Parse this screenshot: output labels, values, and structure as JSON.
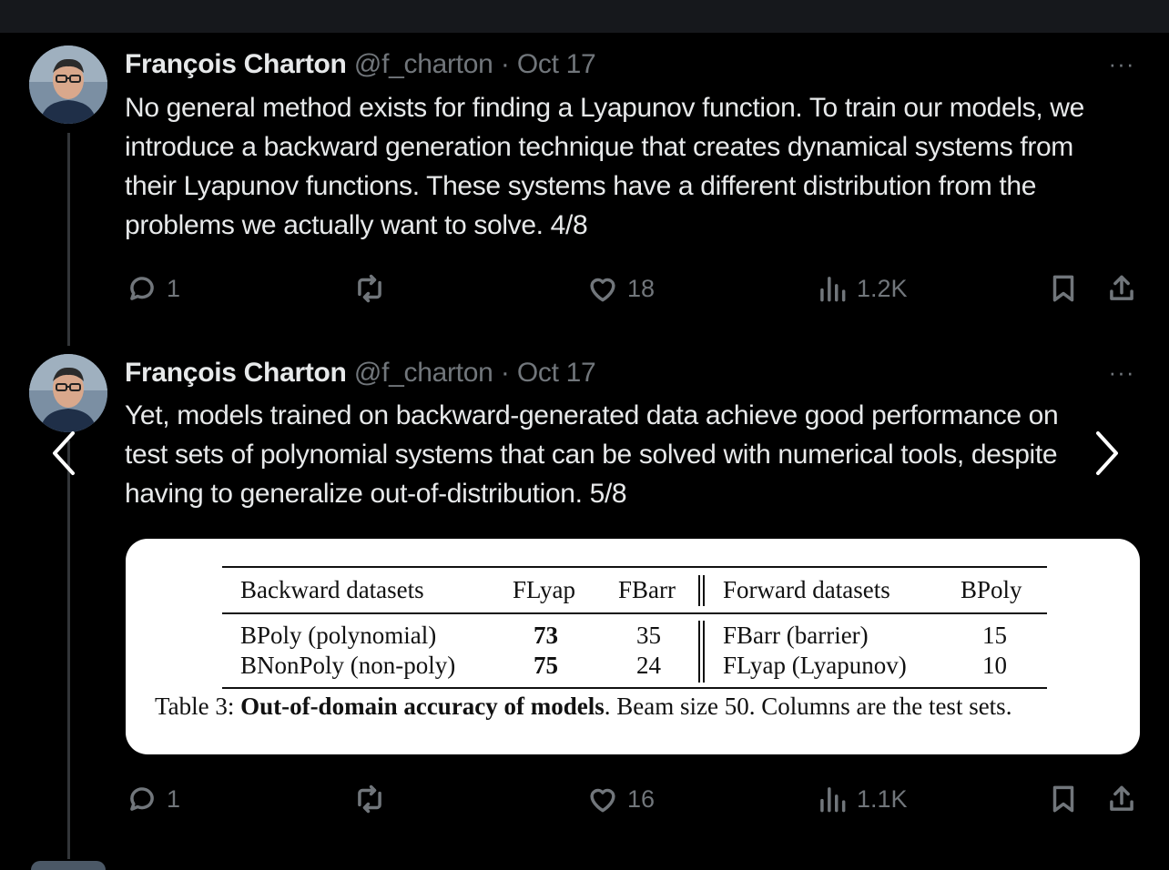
{
  "tweets": [
    {
      "author": "François Charton",
      "handle": "@f_charton",
      "separator": "·",
      "date": "Oct 17",
      "text": "No general method exists for finding a Lyapunov function. To train our models, we introduce a backward generation technique that creates dynamical systems from their Lyapunov functions. These systems have a different distribution from the problems we actually want to solve. 4/8",
      "replies": "1",
      "likes": "18",
      "views": "1.2K"
    },
    {
      "author": "François Charton",
      "handle": "@f_charton",
      "separator": "·",
      "date": "Oct 17",
      "text": "Yet, models trained on backward-generated data achieve good performance on test sets of polynomial systems that can be solved with numerical tools, despite having to generalize out-of-distribution. 5/8",
      "replies": "1",
      "likes": "16",
      "views": "1.1K"
    }
  ],
  "more_label": "···",
  "table": {
    "headers": [
      "Backward datasets",
      "FLyap",
      "FBarr",
      "Forward datasets",
      "BPoly"
    ],
    "rows": [
      [
        "BPoly (polynomial)",
        "73",
        "35",
        "FBarr (barrier)",
        "15"
      ],
      [
        "BNonPoly (non-poly)",
        "75",
        "24",
        "FLyap (Lyapunov)",
        "10"
      ]
    ],
    "caption_prefix": "Table 3: ",
    "caption_bold": "Out-of-domain accuracy of models",
    "caption_rest": ". Beam size 50. Columns are the test sets."
  },
  "icons": {
    "reply": "reply-icon",
    "retweet": "retweet-icon",
    "like": "heart-icon",
    "views": "views-icon",
    "bookmark": "bookmark-icon",
    "share": "share-icon",
    "prev": "chevron-left-icon",
    "next": "chevron-right-icon"
  },
  "colors": {
    "background": "#000000",
    "text": "#e7e9ea",
    "muted": "#71767b"
  }
}
